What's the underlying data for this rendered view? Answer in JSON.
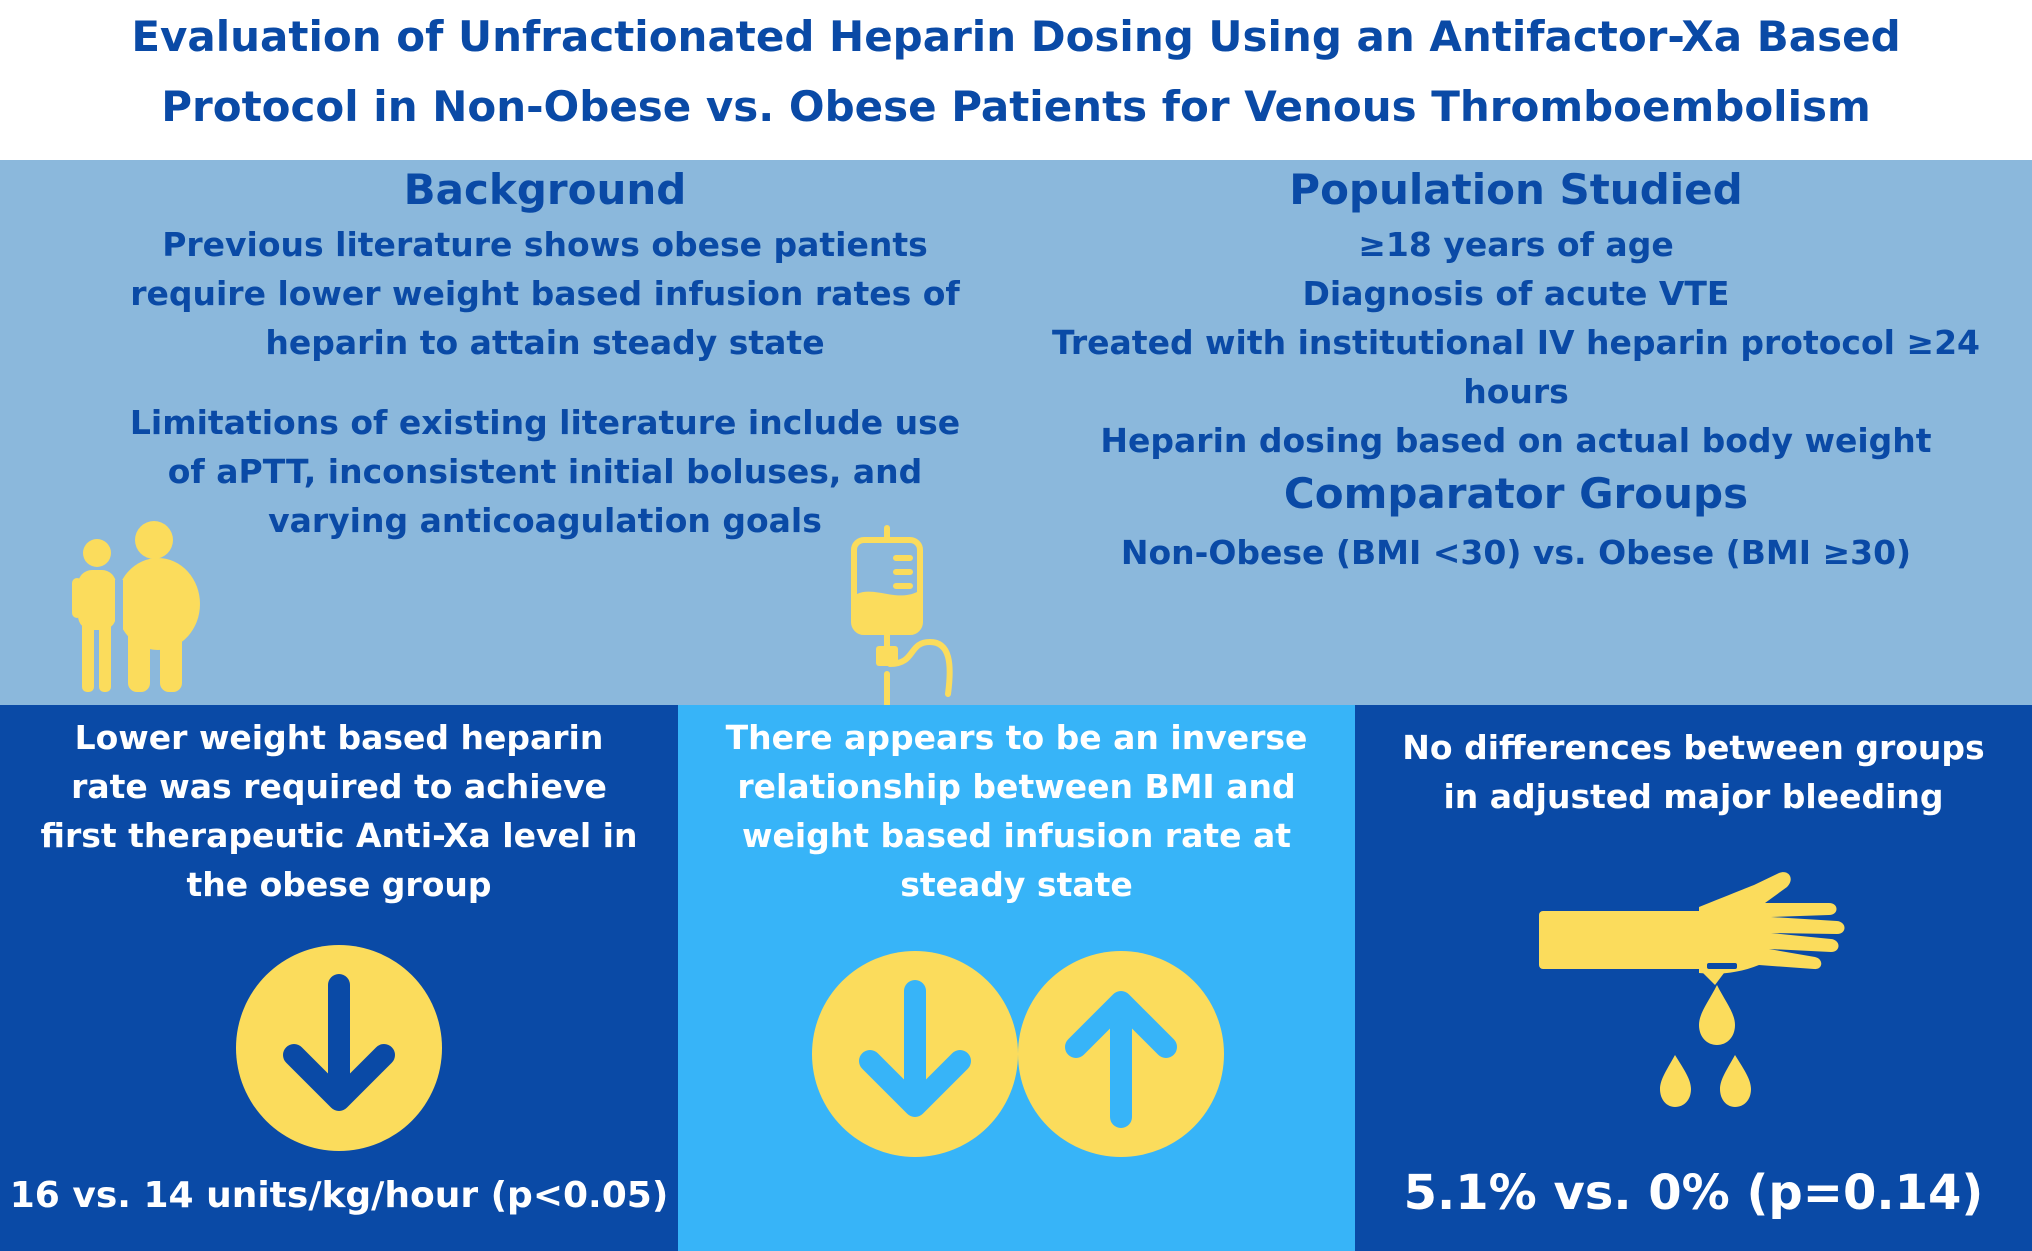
{
  "title": {
    "line1": "Evaluation of Unfractionated Heparin Dosing Using an Antifactor-Xa Based",
    "line2": "Protocol in Non-Obese vs. Obese Patients for Venous Thromboembolism"
  },
  "background": {
    "heading": "Background",
    "paragraph1": "Previous literature shows obese patients require lower weight based infusion rates of heparin to attain steady state",
    "paragraph2": "Limitations of existing literature include use of aPTT, inconsistent initial boluses, and varying anticoagulation goals"
  },
  "population": {
    "heading": "Population Studied",
    "items": [
      "≥18 years of age",
      "Diagnosis of acute VTE",
      "Treated with institutional IV heparin protocol ≥24 hours",
      "Heparin dosing based on actual body weight"
    ]
  },
  "comparator": {
    "heading": "Comparator Groups",
    "text": "Non-Obese (BMI <30) vs. Obese (BMI ≥30)"
  },
  "findings": [
    {
      "text": "Lower  weight based heparin rate was required to achieve first therapeutic Anti-Xa level in the obese group",
      "result": "16 vs. 14 units/kg/hour (p<0.05)",
      "icon": "arrow-down-circle-icon"
    },
    {
      "text": "There appears to be an inverse relationship between BMI and weight based infusion rate at steady state",
      "icon": "arrow-down-up-circles-icon"
    },
    {
      "text": "No differences between groups in adjusted major bleeding",
      "result": "5.1% vs. 0% (p=0.14)",
      "icon": "bleeding-hand-icon"
    }
  ],
  "colors": {
    "dark_blue": "#0a4aa6",
    "light_blue_panel": "#8bb8dc",
    "bright_blue": "#37b4f8",
    "yellow": "#fbdc5c"
  },
  "decorative_icons": [
    "people-icon",
    "iv-bag-icon"
  ]
}
